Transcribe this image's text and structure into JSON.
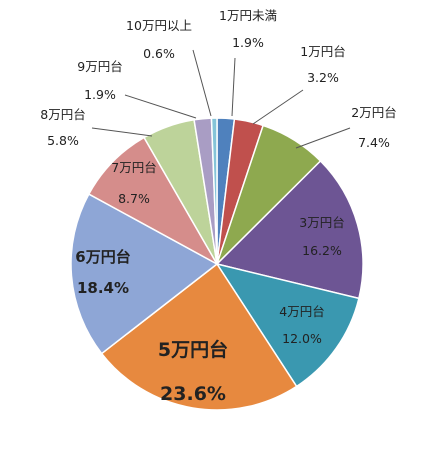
{
  "chart_data": {
    "type": "pie",
    "title": "",
    "slices": [
      {
        "label": "1万円未満",
        "value": 1.9,
        "value_label": "1.9%",
        "color": "#4f81bd"
      },
      {
        "label": "1万円台",
        "value": 3.2,
        "value_label": "3.2%",
        "color": "#c0504d"
      },
      {
        "label": "2万円台",
        "value": 7.4,
        "value_label": "7.4%",
        "color": "#8ea94f"
      },
      {
        "label": "3万円台",
        "value": 16.2,
        "value_label": "16.2%",
        "color": "#6d5594"
      },
      {
        "label": "4万円台",
        "value": 12.0,
        "value_label": "12.0%",
        "color": "#3a98b0"
      },
      {
        "label": "5万円台",
        "value": 23.6,
        "value_label": "23.6%",
        "color": "#e7893f"
      },
      {
        "label": "6万円台",
        "value": 18.4,
        "value_label": "18.4%",
        "color": "#8ea6d6"
      },
      {
        "label": "7万円台",
        "value": 8.7,
        "value_label": "8.7%",
        "color": "#d58d8b"
      },
      {
        "label": "8万円台",
        "value": 5.8,
        "value_label": "5.8%",
        "color": "#bdd39a"
      },
      {
        "label": "9万円台",
        "value": 1.9,
        "value_label": "1.9%",
        "color": "#a99dc4"
      },
      {
        "label": "10万円以上",
        "value": 0.6,
        "value_label": "0.6%",
        "color": "#85c4d8"
      }
    ],
    "start_angle": "12 o'clock",
    "direction": "clockwise",
    "legend": "none",
    "label_style": "category and percent next to each slice"
  }
}
